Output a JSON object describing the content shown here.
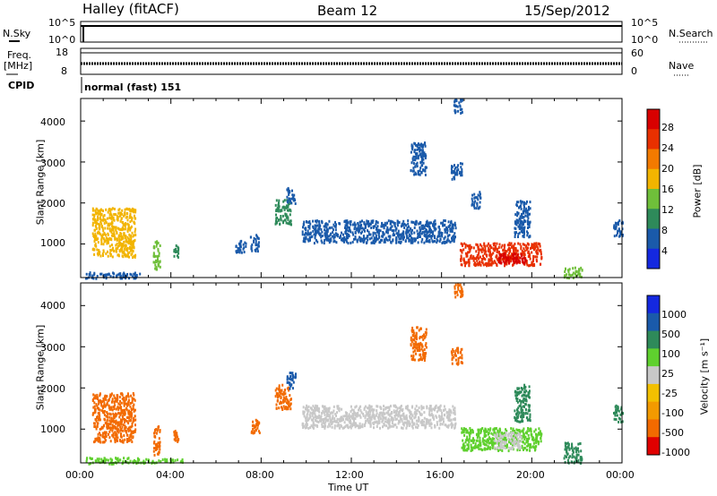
{
  "header": {
    "station": "Halley (fitACF)",
    "beam": "Beam 12",
    "date": "15/Sep/2012"
  },
  "top_strip": {
    "nsky_label": "N.Sky",
    "nsearch_label": "N.Search",
    "left_ticks": [
      "10^5",
      "10^0"
    ],
    "right_ticks": [
      "10^5",
      "10^0"
    ]
  },
  "freq_strip": {
    "freq_label": "Freq.",
    "freq_unit": "[MHz]",
    "nave_label": "Nave",
    "left_ticks": [
      "18",
      "8"
    ],
    "right_ticks": [
      "60",
      "0"
    ]
  },
  "cpid": {
    "label": "CPID",
    "value": "normal (fast) 151"
  },
  "axes": {
    "ylabel": "Slant Range [km]",
    "xlabel": "Time UT",
    "y_ticks": [
      "4000",
      "3000",
      "2000",
      "1000"
    ],
    "x_ticks": [
      "00:00",
      "04:00",
      "08:00",
      "12:00",
      "16:00",
      "20:00",
      "00:00"
    ]
  },
  "power_colorbar": {
    "label": "Power [dB]",
    "ticks": [
      "28",
      "24",
      "20",
      "16",
      "12",
      "8",
      "4"
    ]
  },
  "velocity_colorbar": {
    "label_main": "Velocity",
    "label_unit": "[m s⁻¹]",
    "ticks": [
      "1000",
      "500",
      "100",
      "25",
      "-25",
      "-100",
      "-500",
      "-1000"
    ]
  },
  "chart_data": [
    {
      "type": "heatmap",
      "panel": "power",
      "xlim_hours": [
        0,
        24
      ],
      "ylim_km": [
        180,
        4550
      ],
      "colorbar_range_db": [
        0,
        30
      ],
      "colors": [
        "#1428e0",
        "#1a5aaa",
        "#2e8a5a",
        "#6fbf3a",
        "#f2b400",
        "#f27a00",
        "#e83000",
        "#d80000"
      ],
      "patches": [
        {
          "t0": 0.2,
          "t1": 2.6,
          "r0": 180,
          "r1": 330,
          "level": 1
        },
        {
          "t0": 0.5,
          "t1": 2.4,
          "r0": 700,
          "r1": 1900,
          "level": 4
        },
        {
          "t0": 3.2,
          "t1": 3.5,
          "r0": 400,
          "r1": 1100,
          "level": 3
        },
        {
          "t0": 4.1,
          "t1": 4.3,
          "r0": 700,
          "r1": 1000,
          "level": 2
        },
        {
          "t0": 6.8,
          "t1": 7.3,
          "r0": 800,
          "r1": 1100,
          "level": 1
        },
        {
          "t0": 7.5,
          "t1": 7.9,
          "r0": 850,
          "r1": 1250,
          "level": 1
        },
        {
          "t0": 8.6,
          "t1": 9.3,
          "r0": 1500,
          "r1": 2100,
          "level": 2
        },
        {
          "t0": 9.1,
          "t1": 9.5,
          "r0": 2000,
          "r1": 2400,
          "level": 1
        },
        {
          "t0": 9.8,
          "t1": 16.6,
          "r0": 1050,
          "r1": 1600,
          "level": 1
        },
        {
          "t0": 14.6,
          "t1": 15.3,
          "r0": 2700,
          "r1": 3500,
          "level": 1
        },
        {
          "t0": 16.4,
          "t1": 16.9,
          "r0": 2600,
          "r1": 3000,
          "level": 1
        },
        {
          "t0": 16.5,
          "t1": 16.9,
          "r0": 4200,
          "r1": 4550,
          "level": 1
        },
        {
          "t0": 17.3,
          "t1": 17.7,
          "r0": 1900,
          "r1": 2300,
          "level": 1
        },
        {
          "t0": 16.8,
          "t1": 20.4,
          "r0": 500,
          "r1": 1050,
          "level": 6
        },
        {
          "t0": 18.5,
          "t1": 19.8,
          "r0": 550,
          "r1": 800,
          "level": 7
        },
        {
          "t0": 19.2,
          "t1": 19.9,
          "r0": 1200,
          "r1": 2100,
          "level": 1
        },
        {
          "t0": 21.4,
          "t1": 22.2,
          "r0": 200,
          "r1": 450,
          "level": 3
        },
        {
          "t0": 23.6,
          "t1": 24.0,
          "r0": 1200,
          "r1": 1600,
          "level": 1
        }
      ]
    },
    {
      "type": "heatmap",
      "panel": "velocity",
      "xlim_hours": [
        0,
        24
      ],
      "ylim_km": [
        180,
        4550
      ],
      "colorbar_range_ms": [
        -1000,
        1000
      ],
      "colors": [
        "#e00000",
        "#f26a00",
        "#f29a00",
        "#f2c000",
        "#c8c8c8",
        "#5fd02e",
        "#2e8a5a",
        "#1a5aaa",
        "#1428e0"
      ],
      "patches": [
        {
          "t0": 0.2,
          "t1": 2.6,
          "r0": 180,
          "r1": 330,
          "color": 5
        },
        {
          "t0": 0.5,
          "t1": 2.4,
          "r0": 700,
          "r1": 1900,
          "color": 1
        },
        {
          "t0": 2.6,
          "t1": 4.6,
          "r0": 200,
          "r1": 300,
          "color": 5
        },
        {
          "t0": 3.2,
          "t1": 3.5,
          "r0": 400,
          "r1": 1100,
          "color": 1
        },
        {
          "t0": 4.1,
          "t1": 4.3,
          "r0": 700,
          "r1": 1000,
          "color": 1
        },
        {
          "t0": 7.5,
          "t1": 7.9,
          "r0": 850,
          "r1": 1250,
          "color": 1
        },
        {
          "t0": 8.6,
          "t1": 9.3,
          "r0": 1500,
          "r1": 2100,
          "color": 1
        },
        {
          "t0": 9.1,
          "t1": 9.5,
          "r0": 2000,
          "r1": 2400,
          "color": 7
        },
        {
          "t0": 9.8,
          "t1": 16.6,
          "r0": 1050,
          "r1": 1600,
          "color": 4
        },
        {
          "t0": 14.6,
          "t1": 15.3,
          "r0": 2700,
          "r1": 3500,
          "color": 1
        },
        {
          "t0": 16.4,
          "t1": 16.9,
          "r0": 2600,
          "r1": 3000,
          "color": 1
        },
        {
          "t0": 16.5,
          "t1": 16.9,
          "r0": 4200,
          "r1": 4550,
          "color": 1
        },
        {
          "t0": 16.8,
          "t1": 20.4,
          "r0": 500,
          "r1": 1050,
          "color": 5
        },
        {
          "t0": 18.3,
          "t1": 19.5,
          "r0": 550,
          "r1": 950,
          "color": 4
        },
        {
          "t0": 19.2,
          "t1": 19.9,
          "r0": 1200,
          "r1": 2100,
          "color": 6
        },
        {
          "t0": 21.4,
          "t1": 22.2,
          "r0": 200,
          "r1": 700,
          "color": 6
        },
        {
          "t0": 23.6,
          "t1": 24.0,
          "r0": 1200,
          "r1": 1600,
          "color": 6
        }
      ]
    }
  ]
}
